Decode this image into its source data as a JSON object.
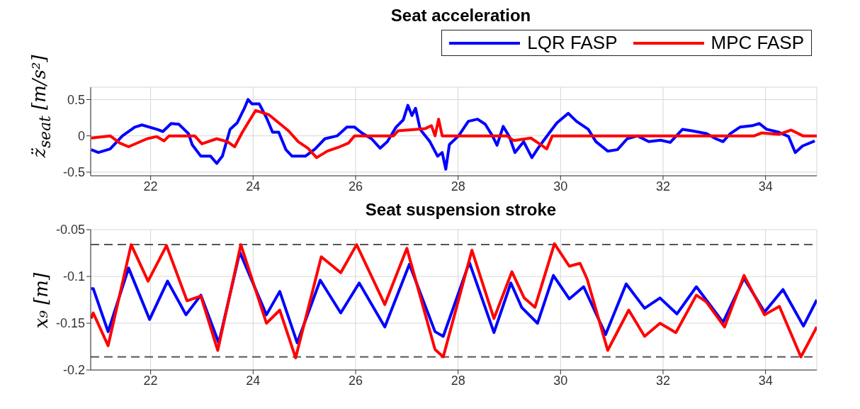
{
  "chart_data": [
    {
      "type": "line",
      "title": "Seat acceleration",
      "ylabel": "z̈$_{seat}$ [m/s²]",
      "xlim": [
        20.83,
        35
      ],
      "xticks": [
        22,
        24,
        26,
        28,
        30,
        32,
        34
      ],
      "ylim": [
        -0.55,
        0.67
      ],
      "yticks": [
        -0.5,
        0,
        0.5
      ],
      "grid": true,
      "legend": "top right",
      "marker": "none",
      "line_style": "solid",
      "series": [
        {
          "name": "LQR FASP",
          "color": "#0000ff",
          "x": [
            20.84,
            20.98,
            21.21,
            21.45,
            21.69,
            21.83,
            22.12,
            22.24,
            22.4,
            22.55,
            22.74,
            22.81,
            22.98,
            23.17,
            23.29,
            23.4,
            23.55,
            23.69,
            23.83,
            23.9,
            23.98,
            24.12,
            24.26,
            24.38,
            24.5,
            24.64,
            24.76,
            25.02,
            25.21,
            25.4,
            25.64,
            25.83,
            25.98,
            26.12,
            26.31,
            26.48,
            26.62,
            26.79,
            26.93,
            27.02,
            27.1,
            27.17,
            27.26,
            27.45,
            27.6,
            27.69,
            27.76,
            27.83,
            28.01,
            28.2,
            28.38,
            28.53,
            28.67,
            28.76,
            28.88,
            29.0,
            29.11,
            29.28,
            29.44,
            29.56,
            29.79,
            29.93,
            30.15,
            30.31,
            30.54,
            30.69,
            30.92,
            31.11,
            31.3,
            31.5,
            31.72,
            31.95,
            32.14,
            32.38,
            32.56,
            32.85,
            33.03,
            33.17,
            33.31,
            33.5,
            33.74,
            33.88,
            34.02,
            34.26,
            34.45,
            34.58,
            34.72,
            34.96
          ],
          "values": [
            -0.19,
            -0.23,
            -0.18,
            0.0,
            0.12,
            0.15,
            0.09,
            0.06,
            0.17,
            0.16,
            0.03,
            -0.12,
            -0.28,
            -0.28,
            -0.38,
            -0.28,
            0.09,
            0.18,
            0.38,
            0.5,
            0.44,
            0.44,
            0.25,
            0.05,
            0.05,
            -0.19,
            -0.28,
            -0.28,
            -0.18,
            -0.04,
            0.0,
            0.12,
            0.12,
            0.04,
            -0.04,
            -0.17,
            -0.08,
            0.12,
            0.22,
            0.42,
            0.28,
            0.38,
            0.09,
            -0.08,
            -0.28,
            -0.23,
            -0.46,
            -0.12,
            0.0,
            0.2,
            0.23,
            0.16,
            0.0,
            -0.13,
            0.13,
            -0.01,
            -0.23,
            -0.08,
            -0.3,
            -0.17,
            0.05,
            0.18,
            0.31,
            0.2,
            0.09,
            -0.08,
            -0.21,
            -0.19,
            -0.04,
            0.0,
            -0.08,
            -0.06,
            -0.09,
            0.09,
            0.07,
            0.03,
            -0.04,
            -0.08,
            0.03,
            0.12,
            0.14,
            0.17,
            0.09,
            0.05,
            -0.01,
            -0.23,
            -0.14,
            -0.07
          ]
        },
        {
          "name": "MPC FASP",
          "color": "#ff0000",
          "x": [
            20.84,
            21.21,
            21.4,
            21.57,
            21.93,
            22.12,
            22.26,
            22.36,
            22.86,
            23.0,
            23.29,
            23.5,
            23.64,
            23.79,
            24.05,
            24.31,
            24.5,
            24.69,
            24.88,
            25.07,
            25.24,
            25.45,
            25.69,
            25.86,
            25.98,
            26.74,
            26.83,
            27.36,
            27.48,
            27.55,
            27.62,
            27.69,
            28.95,
            29.09,
            29.42,
            29.61,
            29.73,
            29.84,
            33.78,
            33.92,
            34.26,
            34.5,
            34.73,
            35.0
          ],
          "values": [
            -0.03,
            0.0,
            -0.1,
            -0.15,
            -0.04,
            -0.01,
            -0.07,
            0,
            0,
            -0.11,
            -0.04,
            -0.08,
            -0.15,
            0.05,
            0.35,
            0.29,
            0.18,
            0.07,
            -0.08,
            -0.17,
            -0.3,
            -0.21,
            -0.15,
            -0.1,
            0,
            0,
            0.07,
            0.1,
            0.14,
            0.0,
            0.23,
            0,
            0,
            -0.065,
            -0.03,
            -0.12,
            -0.18,
            0,
            0,
            0.04,
            0.02,
            0.08,
            0,
            0
          ]
        }
      ]
    },
    {
      "type": "line",
      "title": "Seat suspension stroke",
      "ylabel": "x₉ [m]",
      "xlim": [
        20.83,
        35
      ],
      "xticks": [
        22,
        24,
        26,
        28,
        30,
        32,
        34
      ],
      "ylim": [
        -0.2,
        -0.05
      ],
      "yticks": [
        -0.2,
        -0.15,
        -0.1,
        -0.05
      ],
      "grid": true,
      "marker": "none",
      "line_style": "solid",
      "ref_lines": [
        {
          "axis": "y",
          "value": -0.066,
          "color": "#555555",
          "line_style": "dashed"
        },
        {
          "axis": "y",
          "value": -0.186,
          "color": "#555555",
          "line_style": "dashed"
        }
      ],
      "series": [
        {
          "color": "#0000ff",
          "x": [
            20.84,
            20.88,
            21.17,
            21.57,
            21.98,
            22.33,
            22.69,
            22.98,
            23.33,
            23.74,
            24.26,
            24.52,
            24.86,
            25.31,
            25.71,
            26.07,
            26.57,
            27.05,
            27.55,
            27.71,
            28.22,
            28.7,
            29.03,
            29.24,
            29.55,
            29.86,
            30.17,
            30.45,
            30.88,
            31.28,
            31.64,
            31.94,
            32.27,
            32.65,
            33.17,
            33.58,
            33.98,
            34.34,
            34.74,
            35.0
          ],
          "values": [
            -0.113,
            -0.113,
            -0.159,
            -0.091,
            -0.146,
            -0.105,
            -0.141,
            -0.12,
            -0.171,
            -0.074,
            -0.141,
            -0.116,
            -0.171,
            -0.104,
            -0.139,
            -0.107,
            -0.154,
            -0.087,
            -0.159,
            -0.164,
            -0.085,
            -0.16,
            -0.107,
            -0.133,
            -0.15,
            -0.099,
            -0.124,
            -0.111,
            -0.162,
            -0.108,
            -0.134,
            -0.123,
            -0.14,
            -0.111,
            -0.149,
            -0.102,
            -0.138,
            -0.114,
            -0.153,
            -0.125
          ]
        },
        {
          "color": "#ff0000",
          "x": [
            20.84,
            20.88,
            21.17,
            21.62,
            21.95,
            22.31,
            22.71,
            22.98,
            23.31,
            23.76,
            24.26,
            24.52,
            24.83,
            25.33,
            25.71,
            26.02,
            26.57,
            27.0,
            27.55,
            27.71,
            28.27,
            28.7,
            29.05,
            29.29,
            29.5,
            29.88,
            30.17,
            30.38,
            30.52,
            30.92,
            31.33,
            31.64,
            31.94,
            32.25,
            32.65,
            32.84,
            33.2,
            33.58,
            33.98,
            34.27,
            34.69,
            35.0
          ],
          "values": [
            -0.145,
            -0.139,
            -0.174,
            -0.066,
            -0.105,
            -0.067,
            -0.126,
            -0.121,
            -0.179,
            -0.066,
            -0.15,
            -0.136,
            -0.187,
            -0.079,
            -0.096,
            -0.066,
            -0.13,
            -0.07,
            -0.178,
            -0.186,
            -0.072,
            -0.145,
            -0.095,
            -0.123,
            -0.133,
            -0.065,
            -0.089,
            -0.086,
            -0.103,
            -0.179,
            -0.136,
            -0.164,
            -0.15,
            -0.16,
            -0.12,
            -0.127,
            -0.154,
            -0.099,
            -0.141,
            -0.132,
            -0.186,
            -0.154
          ]
        }
      ]
    }
  ]
}
